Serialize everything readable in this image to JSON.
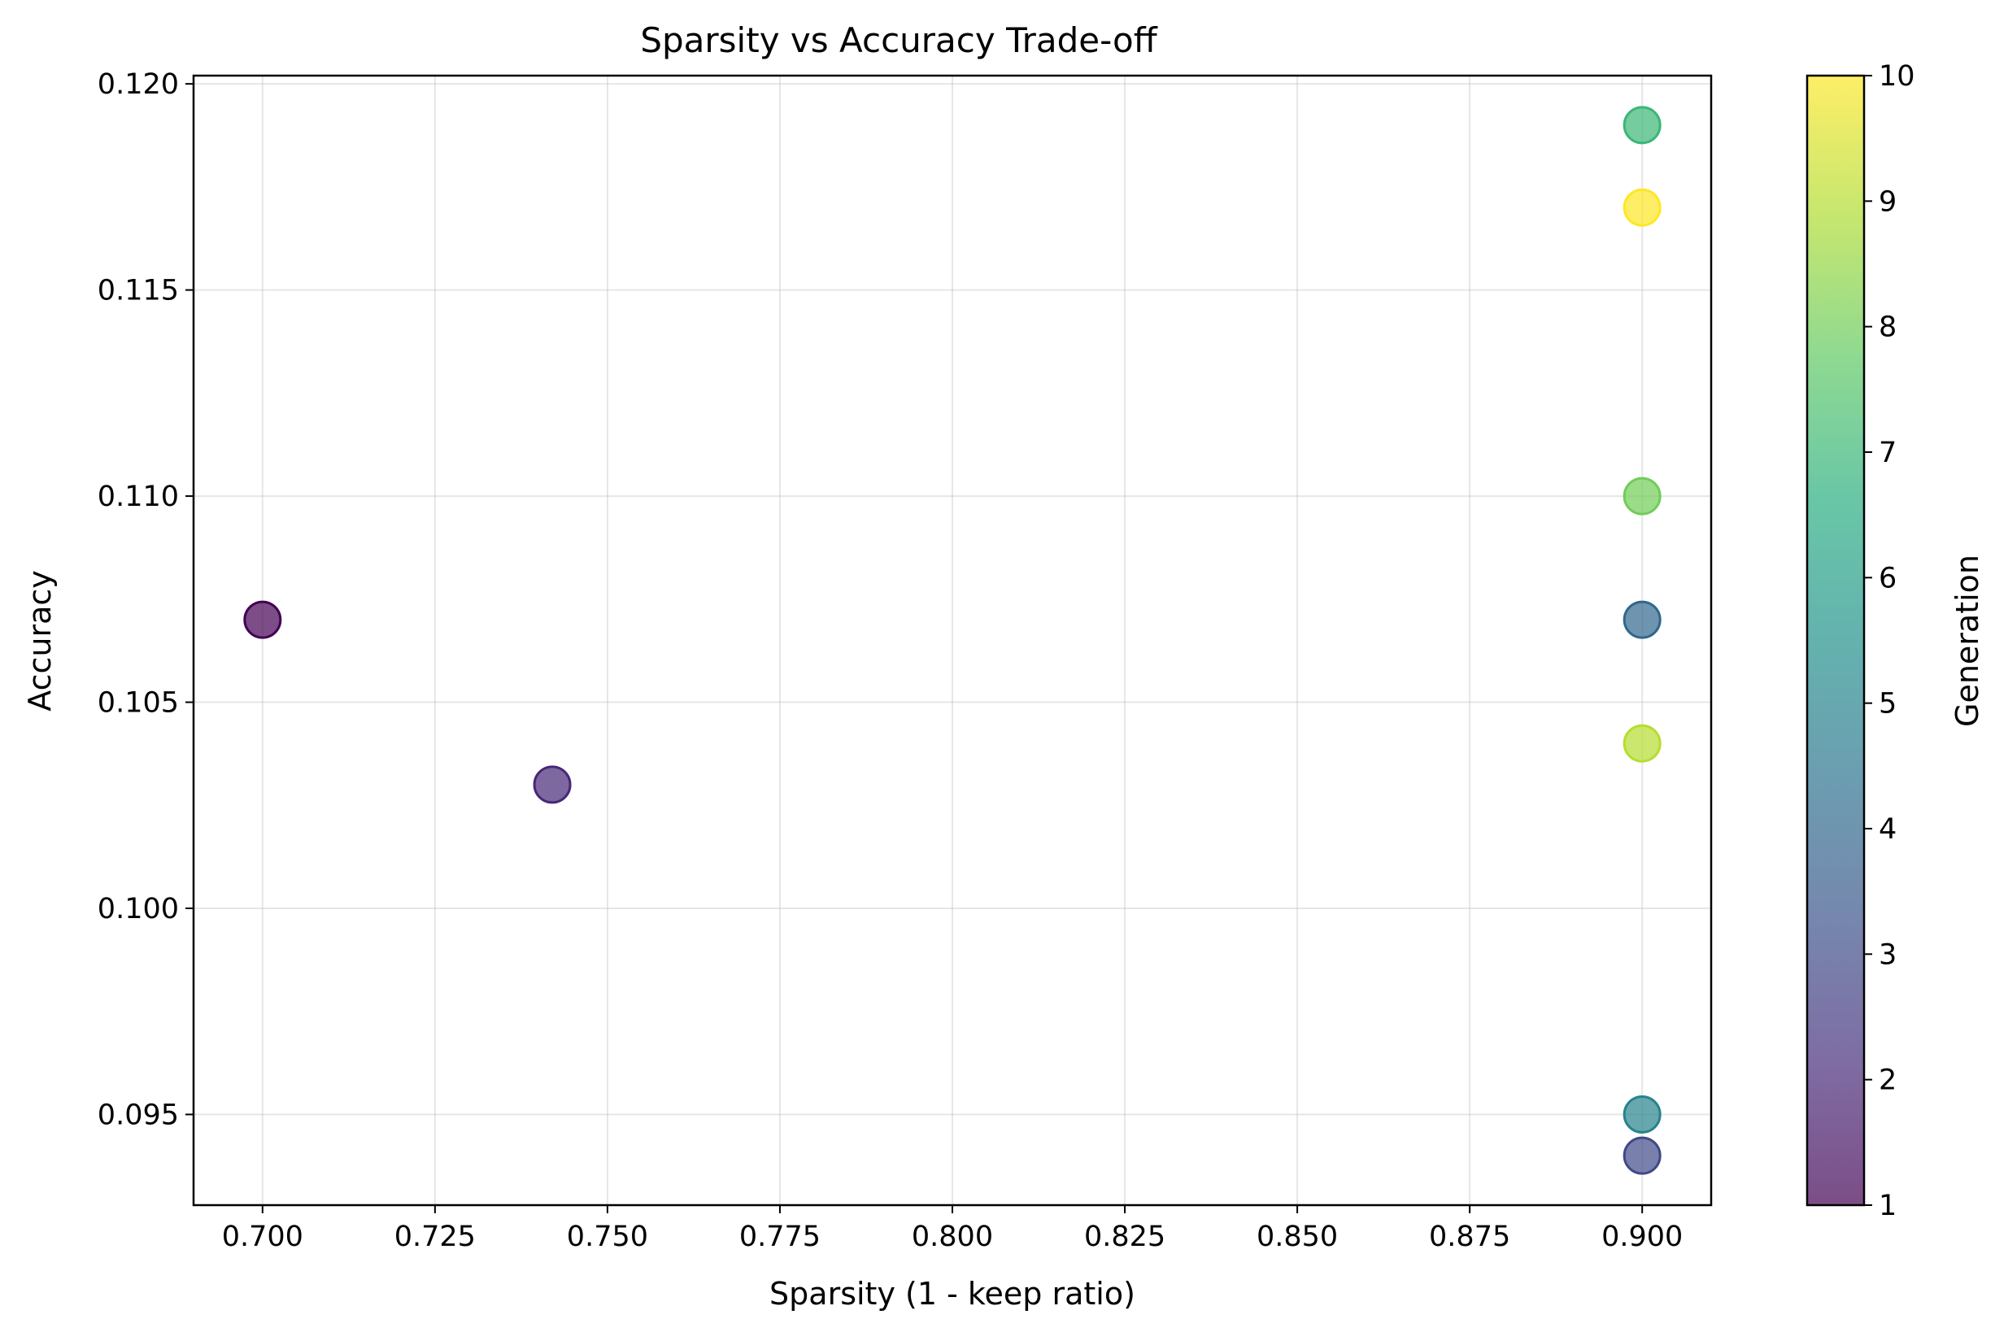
{
  "chart_data": {
    "type": "scatter",
    "title": "Sparsity vs Accuracy Trade-off",
    "xlabel": "Sparsity (1 - keep ratio)",
    "ylabel": "Accuracy",
    "xlim": [
      0.69,
      0.91
    ],
    "ylim": [
      0.0928,
      0.1202
    ],
    "xticks": [
      0.7,
      0.725,
      0.75,
      0.775,
      0.8,
      0.825,
      0.85,
      0.875,
      0.9
    ],
    "xtick_labels": [
      "0.700",
      "0.725",
      "0.750",
      "0.775",
      "0.800",
      "0.825",
      "0.850",
      "0.875",
      "0.900"
    ],
    "yticks": [
      0.095,
      0.1,
      0.105,
      0.11,
      0.115,
      0.12
    ],
    "ytick_labels": [
      "0.095",
      "0.100",
      "0.105",
      "0.110",
      "0.115",
      "0.120"
    ],
    "grid": true,
    "colormap": "viridis",
    "marker_alpha": 0.7,
    "points": [
      {
        "x": 0.7,
        "y": 0.107,
        "generation": 1
      },
      {
        "x": 0.742,
        "y": 0.103,
        "generation": 2
      },
      {
        "x": 0.9,
        "y": 0.094,
        "generation": 3
      },
      {
        "x": 0.9,
        "y": 0.107,
        "generation": 4
      },
      {
        "x": 0.9,
        "y": 0.095,
        "generation": 5
      },
      {
        "x": 0.9,
        "y": 0.119,
        "generation": 7
      },
      {
        "x": 0.9,
        "y": 0.11,
        "generation": 8
      },
      {
        "x": 0.9,
        "y": 0.104,
        "generation": 9
      },
      {
        "x": 0.9,
        "y": 0.117,
        "generation": 10
      }
    ],
    "colorbar": {
      "label": "Generation",
      "min": 1,
      "max": 10,
      "ticks": [
        1,
        2,
        3,
        4,
        5,
        6,
        7,
        8,
        9,
        10
      ],
      "tick_labels": [
        "1",
        "2",
        "3",
        "4",
        "5",
        "6",
        "7",
        "8",
        "9",
        "10"
      ]
    }
  }
}
